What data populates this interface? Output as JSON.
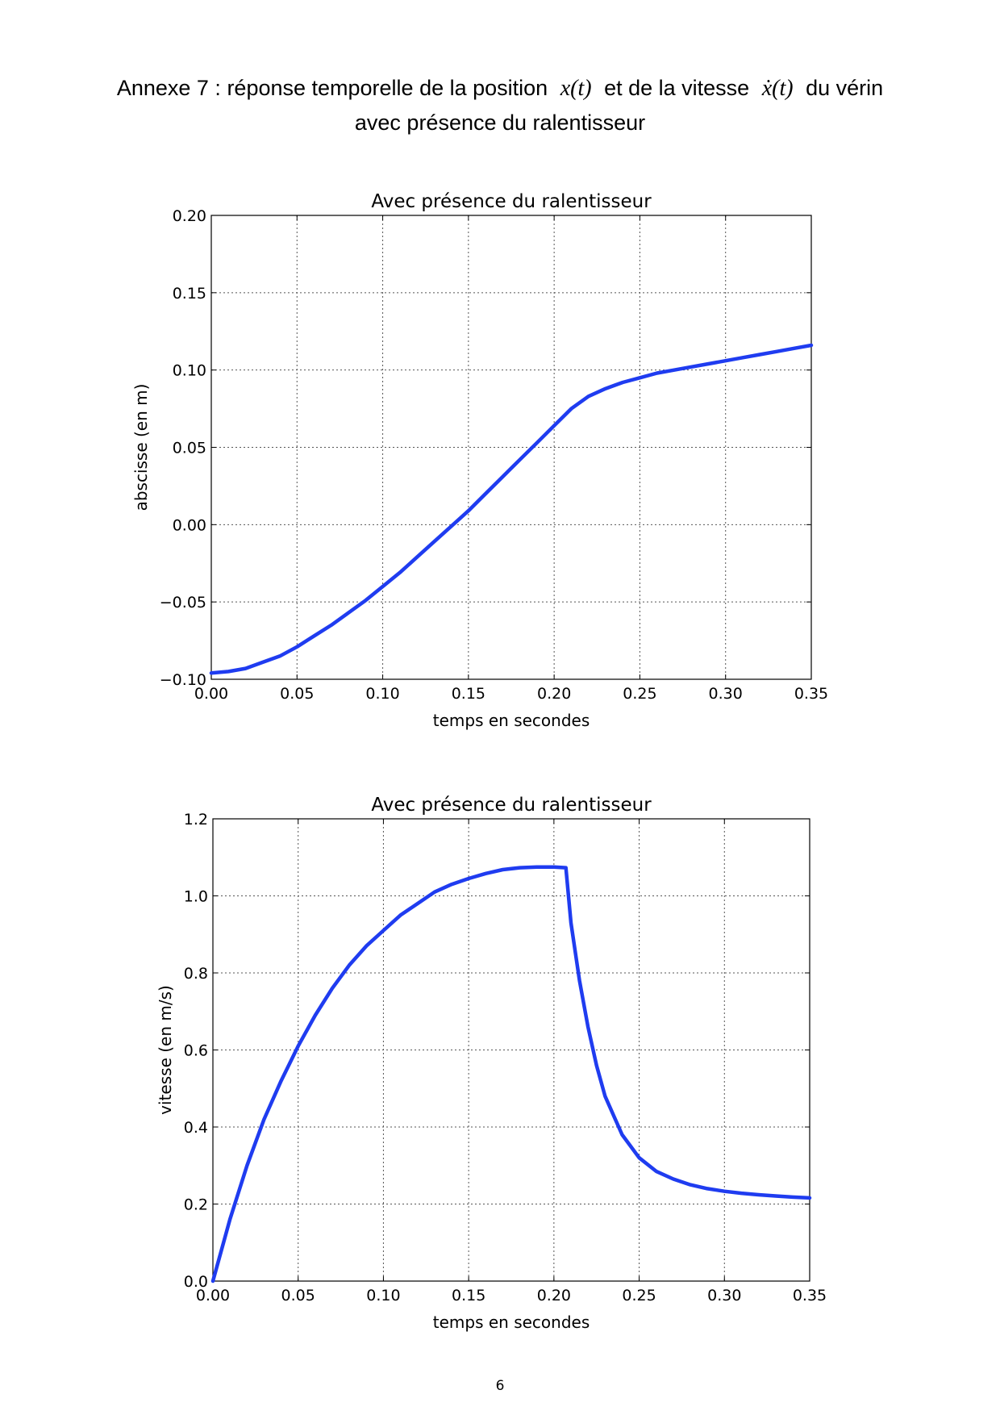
{
  "heading": {
    "line1_prefix": "Annexe 7 : réponse temporelle de la position",
    "math_position": "x(t)",
    "line1_middle": "et de la vitesse",
    "math_velocity": "ẋ(t)",
    "line1_suffix": "du vérin",
    "line2": "avec présence du ralentisseur"
  },
  "page_number": "6",
  "chart_data": [
    {
      "type": "line",
      "title": "Avec présence du ralentisseur",
      "xlabel": "temps en secondes",
      "ylabel": "abscisse (en m)",
      "xlim": [
        0,
        0.35
      ],
      "ylim": [
        -0.1,
        0.2
      ],
      "xticks": [
        "0.00",
        "0.05",
        "0.10",
        "0.15",
        "0.20",
        "0.25",
        "0.30",
        "0.35"
      ],
      "yticks": [
        "−0.10",
        "−0.05",
        "0.00",
        "0.05",
        "0.10",
        "0.15",
        "0.20"
      ],
      "grid": true,
      "line_color": "#1f3cf0",
      "x": [
        0,
        0.01,
        0.02,
        0.03,
        0.04,
        0.05,
        0.06,
        0.07,
        0.08,
        0.09,
        0.1,
        0.11,
        0.12,
        0.13,
        0.14,
        0.15,
        0.16,
        0.17,
        0.18,
        0.19,
        0.2,
        0.21,
        0.22,
        0.23,
        0.24,
        0.25,
        0.26,
        0.27,
        0.28,
        0.29,
        0.3,
        0.31,
        0.32,
        0.33,
        0.34,
        0.35
      ],
      "y": [
        -0.096,
        -0.095,
        -0.093,
        -0.089,
        -0.085,
        -0.079,
        -0.072,
        -0.065,
        -0.057,
        -0.049,
        -0.04,
        -0.031,
        -0.021,
        -0.011,
        -0.001,
        0.009,
        0.02,
        0.031,
        0.042,
        0.053,
        0.064,
        0.075,
        0.083,
        0.088,
        0.092,
        0.095,
        0.098,
        0.1,
        0.102,
        0.104,
        0.106,
        0.108,
        0.11,
        0.112,
        0.114,
        0.116
      ]
    },
    {
      "type": "line",
      "title": "Avec présence du ralentisseur",
      "xlabel": "temps en secondes",
      "ylabel": "vitesse (en m/s)",
      "xlim": [
        0,
        0.35
      ],
      "ylim": [
        0,
        1.2
      ],
      "xticks": [
        "0.00",
        "0.05",
        "0.10",
        "0.15",
        "0.20",
        "0.25",
        "0.30",
        "0.35"
      ],
      "yticks": [
        "0.0",
        "0.2",
        "0.4",
        "0.6",
        "0.8",
        "1.0",
        "1.2"
      ],
      "grid": true,
      "line_color": "#1f3cf0",
      "x": [
        0,
        0.01,
        0.02,
        0.03,
        0.04,
        0.05,
        0.06,
        0.07,
        0.08,
        0.09,
        0.1,
        0.11,
        0.12,
        0.13,
        0.14,
        0.15,
        0.16,
        0.17,
        0.18,
        0.19,
        0.2,
        0.207,
        0.21,
        0.215,
        0.22,
        0.225,
        0.23,
        0.24,
        0.25,
        0.26,
        0.27,
        0.28,
        0.29,
        0.3,
        0.31,
        0.32,
        0.33,
        0.34,
        0.35
      ],
      "y": [
        0,
        0.16,
        0.3,
        0.42,
        0.52,
        0.61,
        0.69,
        0.76,
        0.82,
        0.87,
        0.91,
        0.95,
        0.98,
        1.01,
        1.03,
        1.045,
        1.058,
        1.068,
        1.073,
        1.075,
        1.075,
        1.073,
        0.93,
        0.78,
        0.66,
        0.56,
        0.48,
        0.38,
        0.32,
        0.285,
        0.265,
        0.25,
        0.24,
        0.233,
        0.228,
        0.224,
        0.221,
        0.218,
        0.216
      ]
    }
  ]
}
